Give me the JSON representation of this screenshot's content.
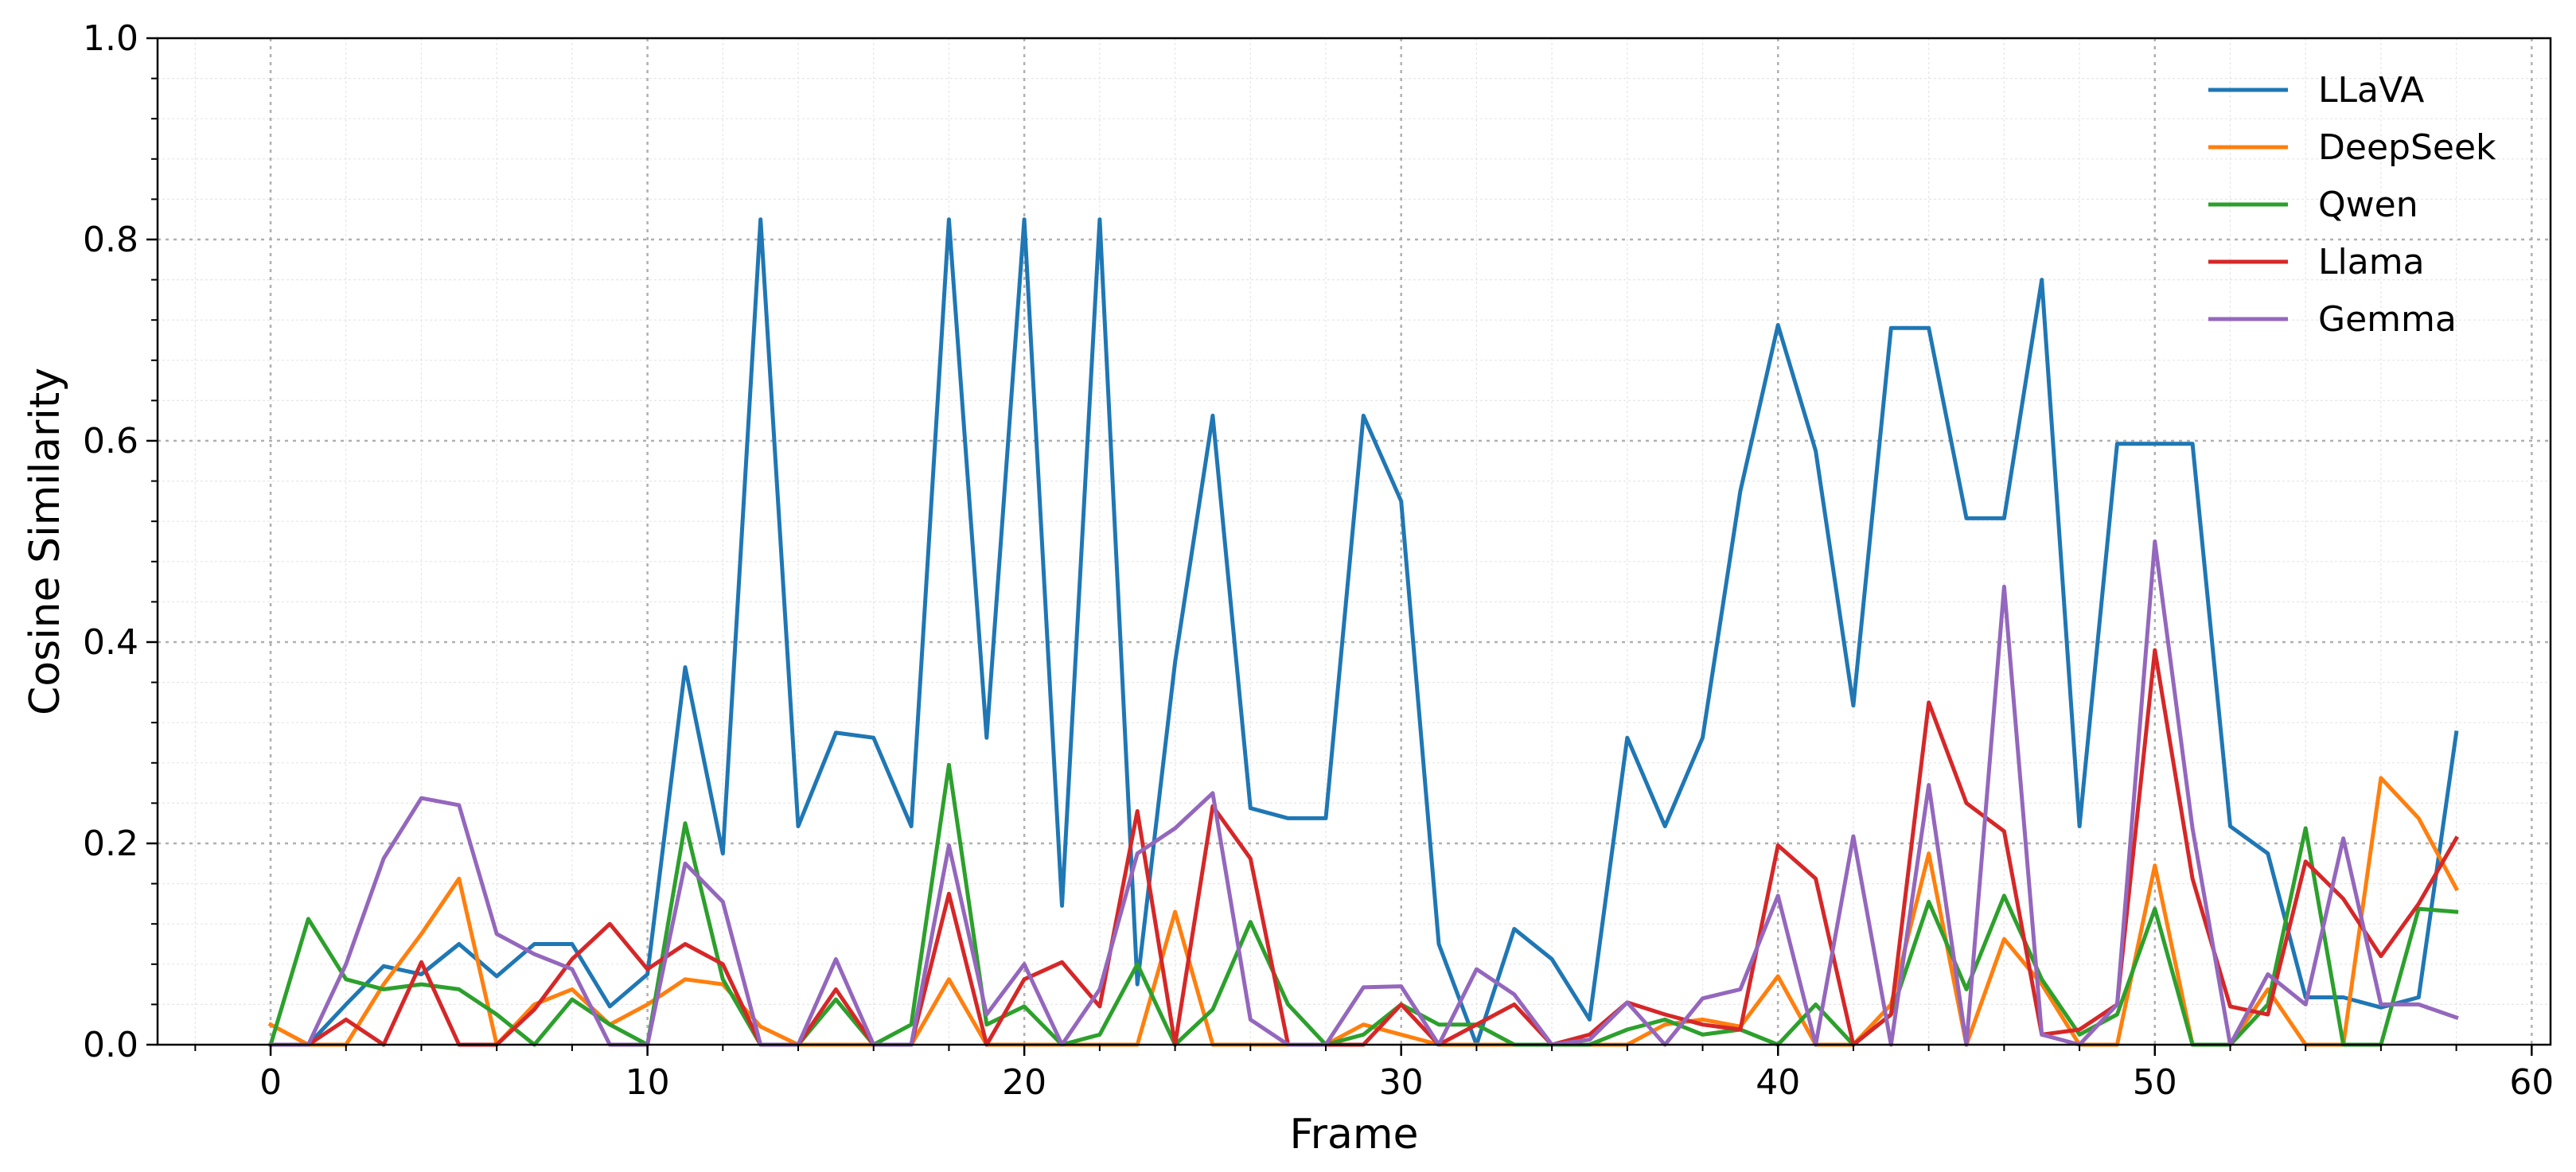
{
  "chart_data": {
    "type": "line",
    "title": "",
    "xlabel": "Frame",
    "ylabel": "Cosine Similarity",
    "xlim": [
      -3,
      60.5
    ],
    "ylim": [
      0,
      1.0
    ],
    "xticks": [
      0,
      10,
      20,
      30,
      40,
      50,
      60
    ],
    "yticks": [
      0.0,
      0.2,
      0.4,
      0.6,
      0.8,
      1.0
    ],
    "xtick_labels": [
      "0",
      "10",
      "20",
      "30",
      "40",
      "50",
      "60"
    ],
    "ytick_labels": [
      "0.0",
      "0.2",
      "0.4",
      "0.6",
      "0.8",
      "1.0"
    ],
    "grid": true,
    "legend": "top-right",
    "x": [
      0,
      1,
      2,
      3,
      4,
      5,
      6,
      7,
      8,
      9,
      10,
      11,
      12,
      13,
      14,
      15,
      16,
      17,
      18,
      19,
      20,
      21,
      22,
      23,
      24,
      25,
      26,
      27,
      28,
      29,
      30,
      31,
      32,
      33,
      34,
      35,
      36,
      37,
      38,
      39,
      40,
      41,
      42,
      43,
      44,
      45,
      46,
      47,
      48,
      49,
      50,
      51,
      52,
      53,
      54,
      55,
      56,
      57,
      58
    ],
    "series": [
      {
        "name": "LLaVA",
        "color": "#1f77b4",
        "values": [
          0.0,
          0.0,
          0.04,
          0.078,
          0.07,
          0.1,
          0.068,
          0.1,
          0.1,
          0.038,
          0.07,
          0.375,
          0.19,
          0.82,
          0.217,
          0.31,
          0.305,
          0.217,
          0.82,
          0.305,
          0.82,
          0.138,
          0.82,
          0.06,
          0.38,
          0.625,
          0.235,
          0.225,
          0.225,
          0.625,
          0.54,
          0.1,
          0.0,
          0.115,
          0.085,
          0.025,
          0.305,
          0.217,
          0.305,
          0.55,
          0.715,
          0.59,
          0.337,
          0.712,
          0.712,
          0.523,
          0.523,
          0.76,
          0.217,
          0.597,
          0.597,
          0.597,
          0.217,
          0.19,
          0.047,
          0.047,
          0.037,
          0.047,
          0.31
        ]
      },
      {
        "name": "DeepSeek",
        "color": "#ff7f0e",
        "values": [
          0.02,
          0.0,
          0.0,
          0.06,
          0.11,
          0.165,
          0.0,
          0.04,
          0.055,
          0.02,
          0.04,
          0.065,
          0.06,
          0.018,
          0.0,
          0.0,
          0.0,
          0.0,
          0.065,
          0.0,
          0.0,
          0.0,
          0.0,
          0.0,
          0.132,
          0.0,
          0.0,
          0.0,
          0.0,
          0.02,
          0.01,
          0.0,
          0.0,
          0.0,
          0.0,
          0.0,
          0.0,
          0.02,
          0.025,
          0.018,
          0.068,
          0.0,
          0.0,
          0.04,
          0.19,
          0.0,
          0.105,
          0.06,
          0.0,
          0.0,
          0.178,
          0.0,
          0.0,
          0.055,
          0.0,
          0.0,
          0.265,
          0.225,
          0.155
        ]
      },
      {
        "name": "Qwen",
        "color": "#2ca02c",
        "values": [
          0.0,
          0.125,
          0.065,
          0.055,
          0.06,
          0.055,
          0.03,
          0.0,
          0.045,
          0.02,
          0.0,
          0.22,
          0.065,
          0.0,
          0.0,
          0.045,
          0.0,
          0.02,
          0.278,
          0.02,
          0.038,
          0.0,
          0.01,
          0.08,
          0.0,
          0.035,
          0.122,
          0.04,
          0.0,
          0.01,
          0.04,
          0.02,
          0.02,
          0.0,
          0.0,
          0.0,
          0.015,
          0.025,
          0.01,
          0.015,
          0.0,
          0.04,
          0.0,
          0.03,
          0.142,
          0.055,
          0.148,
          0.065,
          0.01,
          0.03,
          0.135,
          0.0,
          0.0,
          0.04,
          0.215,
          0.0,
          0.0,
          0.135,
          0.132
        ]
      },
      {
        "name": "Llama",
        "color": "#d62728",
        "values": [
          0.0,
          0.0,
          0.025,
          0.0,
          0.082,
          0.0,
          0.0,
          0.035,
          0.085,
          0.12,
          0.075,
          0.1,
          0.08,
          0.0,
          0.0,
          0.055,
          0.0,
          0.0,
          0.15,
          0.0,
          0.065,
          0.082,
          0.038,
          0.232,
          0.0,
          0.237,
          0.185,
          0.0,
          0.0,
          0.0,
          0.04,
          0.0,
          0.02,
          0.04,
          0.0,
          0.01,
          0.042,
          0.03,
          0.02,
          0.015,
          0.198,
          0.165,
          0.0,
          0.03,
          0.34,
          0.24,
          0.212,
          0.01,
          0.015,
          0.04,
          0.392,
          0.165,
          0.038,
          0.03,
          0.182,
          0.145,
          0.088,
          0.14,
          0.205
        ]
      },
      {
        "name": "Gemma",
        "color": "#9467bd",
        "values": [
          0.0,
          0.0,
          0.08,
          0.185,
          0.245,
          0.238,
          0.11,
          0.09,
          0.075,
          0.0,
          0.0,
          0.18,
          0.142,
          0.0,
          0.0,
          0.085,
          0.0,
          0.0,
          0.198,
          0.03,
          0.08,
          0.0,
          0.055,
          0.19,
          0.215,
          0.25,
          0.025,
          0.0,
          0.0,
          0.057,
          0.058,
          0.0,
          0.075,
          0.05,
          0.0,
          0.005,
          0.042,
          0.0,
          0.046,
          0.055,
          0.148,
          0.0,
          0.207,
          0.0,
          0.258,
          0.0,
          0.455,
          0.01,
          0.0,
          0.04,
          0.5,
          0.215,
          0.0,
          0.07,
          0.04,
          0.205,
          0.04,
          0.04,
          0.027
        ]
      }
    ]
  }
}
